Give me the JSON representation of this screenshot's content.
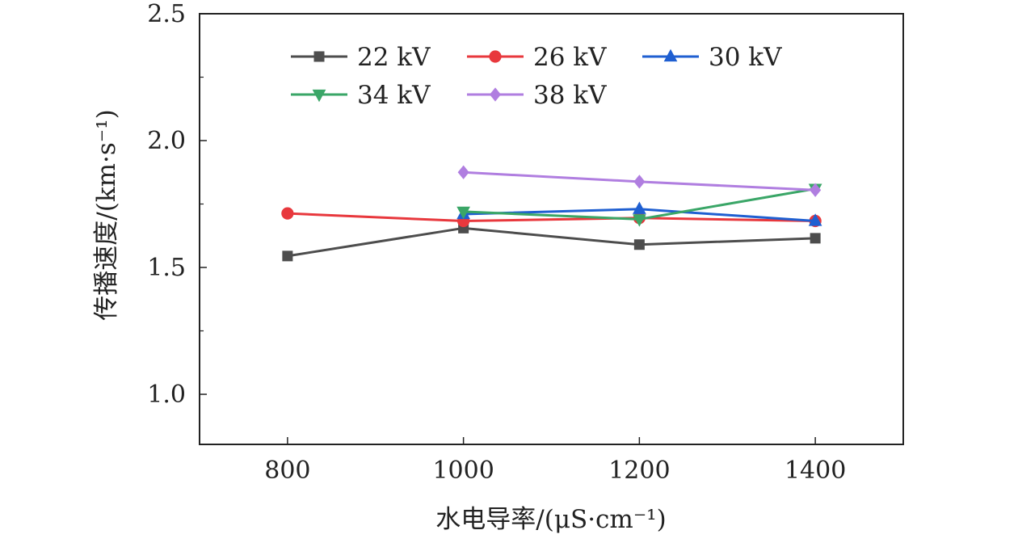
{
  "chart_data": {
    "type": "line",
    "title": "",
    "xlabel": "水电导率/(μS·cm⁻¹)",
    "ylabel": "传播速度/(km·s⁻¹)",
    "xlim": [
      700,
      1500
    ],
    "ylim": [
      0.8,
      2.5
    ],
    "xticks": [
      800,
      1000,
      1200,
      1400
    ],
    "yticks": [
      1.0,
      1.5,
      2.0,
      2.5
    ],
    "xtick_labels": [
      "800",
      "1000",
      "1200",
      "1400"
    ],
    "ytick_labels": [
      "1.0",
      "1.5",
      "2.0",
      "2.5"
    ],
    "legend_position": "top",
    "series": [
      {
        "name": "22 kV",
        "color": "#4d4d4d",
        "marker": "square",
        "x": [
          800,
          1000,
          1200,
          1400
        ],
        "values": [
          1.545,
          1.655,
          1.59,
          1.615
        ]
      },
      {
        "name": "26 kV",
        "color": "#e8383d",
        "marker": "circle",
        "x": [
          800,
          1000,
          1200,
          1400
        ],
        "values": [
          1.713,
          1.683,
          1.695,
          1.683
        ]
      },
      {
        "name": "30 kV",
        "color": "#1f5fd1",
        "marker": "triangle-up",
        "x": [
          1000,
          1200,
          1400
        ],
        "values": [
          1.71,
          1.73,
          1.683
        ]
      },
      {
        "name": "34 kV",
        "color": "#3aa667",
        "marker": "triangle-down",
        "x": [
          1000,
          1200,
          1400
        ],
        "values": [
          1.72,
          1.69,
          1.81
        ]
      },
      {
        "name": "38 kV",
        "color": "#b07ee0",
        "marker": "diamond",
        "x": [
          1000,
          1200,
          1400
        ],
        "values": [
          1.875,
          1.838,
          1.805
        ]
      }
    ]
  }
}
